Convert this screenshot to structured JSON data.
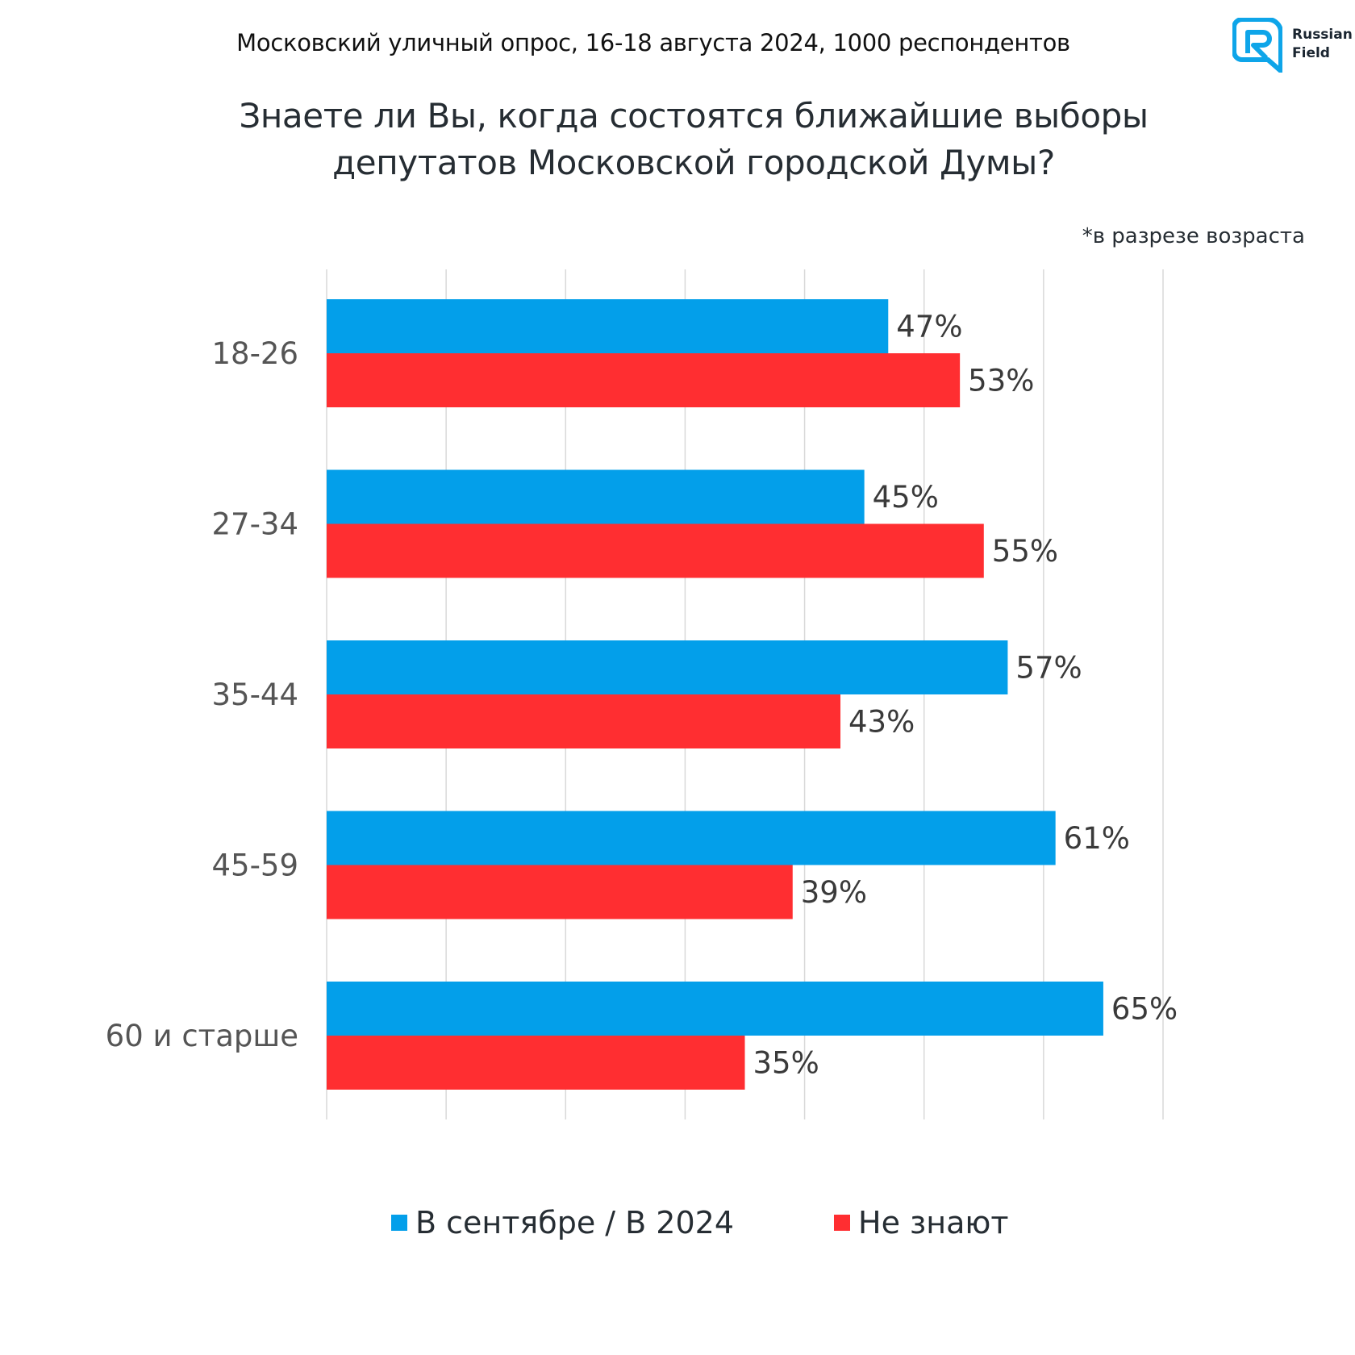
{
  "header": {
    "survey_line": "Московский уличный опрос, 16-18 августа 2024, 1000 респондентов",
    "question_lines": [
      "Знаете ли Вы, когда состоятся ближайшие выборы",
      "депутатов Московской городской Думы?"
    ],
    "note": "*в разрезе возраста",
    "logo": {
      "icon": "russian-field-logo-icon",
      "line1": "Russian",
      "line2": "Field",
      "color": "#0ea5e9"
    }
  },
  "chart_data": {
    "type": "bar",
    "orientation": "horizontal",
    "title": "Знаете ли Вы, когда состоятся ближайшие выборы депутатов Московской городской Думы?",
    "subtitle": "*в разрезе возраста",
    "categories": [
      "18-26",
      "27-34",
      "35-44",
      "45-59",
      "60 и старше"
    ],
    "series": [
      {
        "name": "В сентябре / В 2024",
        "color": "#039fea",
        "values": [
          47,
          45,
          57,
          61,
          65
        ]
      },
      {
        "name": "Не знают",
        "color": "#ff2e31",
        "values": [
          53,
          55,
          43,
          39,
          35
        ]
      }
    ],
    "data_labels": [
      [
        "47%",
        "45%",
        "57%",
        "61%",
        "65%"
      ],
      [
        "53%",
        "55%",
        "43%",
        "39%",
        "35%"
      ]
    ],
    "value_unit": "%",
    "xlim": [
      0,
      70
    ],
    "grid_step": 10,
    "grid": true,
    "x_tick_labels_visible": false,
    "legend_position": "bottom-center"
  }
}
